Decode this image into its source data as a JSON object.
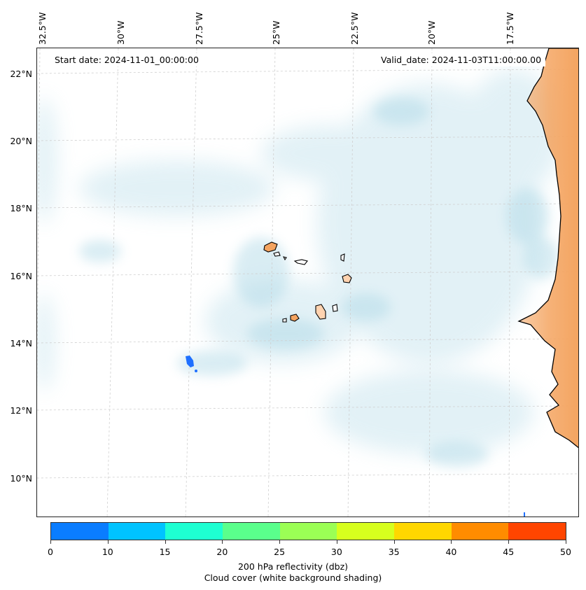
{
  "map": {
    "start_date_text": "Start date: 2024-11-01_00:00:00",
    "valid_date_text": "Valid_date: 2024-11-03T11:00:00.00",
    "lon_labels": [
      "32.5°W",
      "30°W",
      "27.5°W",
      "25°W",
      "22.5°W",
      "20°W",
      "17.5°W"
    ],
    "lat_labels": [
      "22°N",
      "20°N",
      "18°N",
      "16°N",
      "14°N",
      "12°N",
      "10°N"
    ],
    "land_color": "#f4a460",
    "cloud_color": "#add8e6",
    "reflectivity_echo_color": "#1e6fff"
  },
  "colorbar": {
    "ticks": [
      "0",
      "10",
      "15",
      "20",
      "25",
      "30",
      "35",
      "40",
      "45",
      "50"
    ],
    "colors": [
      "#0a7dff",
      "#00c3ff",
      "#1effd2",
      "#5aff8c",
      "#9bff55",
      "#d7ff1e",
      "#ffd700",
      "#ff8c00",
      "#ff4500"
    ],
    "label": "200 hPa reflectivity (dbz)",
    "sublabel": "Cloud cover (white background shading)"
  }
}
